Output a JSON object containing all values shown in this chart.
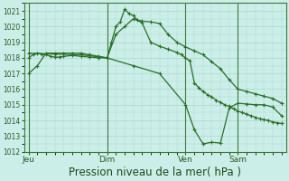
{
  "background_color": "#cceee8",
  "grid_color": "#aad8d0",
  "line_color": "#2a6e2a",
  "xlabel": "Pression niveau de la mer( hPa )",
  "xlabel_fontsize": 8.5,
  "ylim": [
    1012,
    1021.5
  ],
  "yticks": [
    1012,
    1013,
    1014,
    1015,
    1016,
    1017,
    1018,
    1019,
    1020,
    1021
  ],
  "xtick_labels": [
    "Jeu",
    "Dim",
    "Ven",
    "Sam"
  ],
  "xtick_positions": [
    0,
    9,
    18,
    24
  ],
  "vlines": [
    0,
    9,
    18,
    24
  ],
  "series1_x": [
    0,
    0.5,
    1,
    1.5,
    2,
    2.5,
    3,
    3.5,
    4,
    5,
    6,
    7,
    8,
    9,
    9.5,
    10,
    10.5,
    11,
    11.5,
    12,
    12.5,
    13,
    14,
    15,
    16,
    17,
    17.5,
    18,
    18.5,
    19,
    19.5,
    20,
    20.5,
    21,
    21.5,
    22,
    22.5,
    23,
    23.5,
    24,
    24.5,
    25,
    25.5,
    26,
    26.5,
    27,
    27.5,
    28,
    28.5,
    29
  ],
  "series1_y": [
    1018.0,
    1018.2,
    1018.3,
    1018.25,
    1018.2,
    1018.1,
    1018.05,
    1018.05,
    1018.1,
    1018.15,
    1018.1,
    1018.05,
    1018.0,
    1018.0,
    1019.0,
    1020.0,
    1020.3,
    1021.1,
    1020.85,
    1020.7,
    1020.4,
    1020.25,
    1019.0,
    1018.75,
    1018.55,
    1018.35,
    1018.2,
    1018.0,
    1017.8,
    1016.4,
    1016.1,
    1015.85,
    1015.65,
    1015.5,
    1015.3,
    1015.15,
    1015.0,
    1014.9,
    1014.75,
    1014.6,
    1014.5,
    1014.4,
    1014.3,
    1014.2,
    1014.1,
    1014.05,
    1014.0,
    1013.9,
    1013.85,
    1013.8
  ],
  "series2_x": [
    0,
    1,
    2,
    3,
    4,
    5,
    6,
    7,
    8,
    9,
    10,
    11,
    12,
    13,
    14,
    15,
    16,
    17,
    18,
    19,
    20,
    21,
    22,
    23,
    24,
    25,
    26,
    27,
    28,
    29
  ],
  "series2_y": [
    1017.0,
    1017.5,
    1018.3,
    1018.3,
    1018.3,
    1018.3,
    1018.3,
    1018.2,
    1018.1,
    1018.0,
    1019.5,
    1020.0,
    1020.5,
    1020.35,
    1020.3,
    1020.2,
    1019.5,
    1019.0,
    1018.7,
    1018.45,
    1018.2,
    1017.75,
    1017.3,
    1016.6,
    1016.0,
    1015.85,
    1015.7,
    1015.55,
    1015.4,
    1015.1
  ],
  "series3_x": [
    0,
    3,
    6,
    9,
    12,
    15,
    18,
    19,
    20,
    21,
    22,
    23,
    24,
    25,
    26,
    27,
    28,
    29
  ],
  "series3_y": [
    1018.3,
    1018.25,
    1018.2,
    1018.0,
    1017.5,
    1017.0,
    1015.0,
    1013.4,
    1012.5,
    1012.6,
    1012.55,
    1014.8,
    1015.1,
    1015.05,
    1015.0,
    1015.0,
    1014.85,
    1014.3
  ]
}
